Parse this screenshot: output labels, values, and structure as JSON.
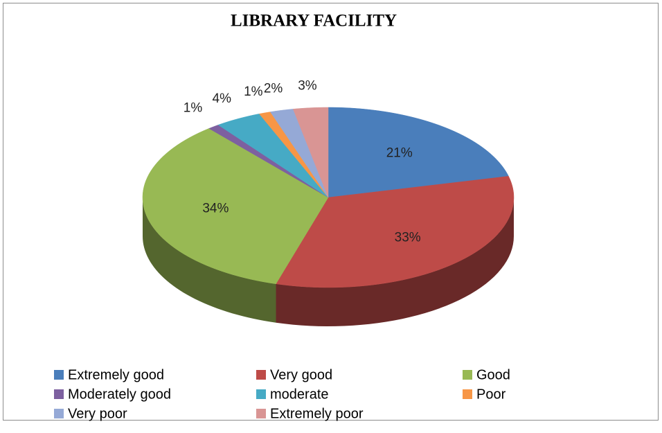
{
  "chart_data": {
    "type": "pie",
    "title": "LIBRARY FACILITY",
    "categories": [
      "Extremely good",
      "Very good",
      "Good",
      "Moderately good",
      "moderate",
      "Poor",
      "Very poor",
      "Extremely poor"
    ],
    "values": [
      21,
      33,
      34,
      1,
      4,
      1,
      2,
      3
    ],
    "value_labels": [
      "21%",
      "33%",
      "34%",
      "1%",
      "4%",
      "1%",
      "2%",
      "3%"
    ],
    "colors": [
      "#4a7ebb",
      "#be4b48",
      "#98b954",
      "#7d60a0",
      "#46aac5",
      "#f79646",
      "#95a9d6",
      "#d99594"
    ],
    "legend": "bottom"
  }
}
